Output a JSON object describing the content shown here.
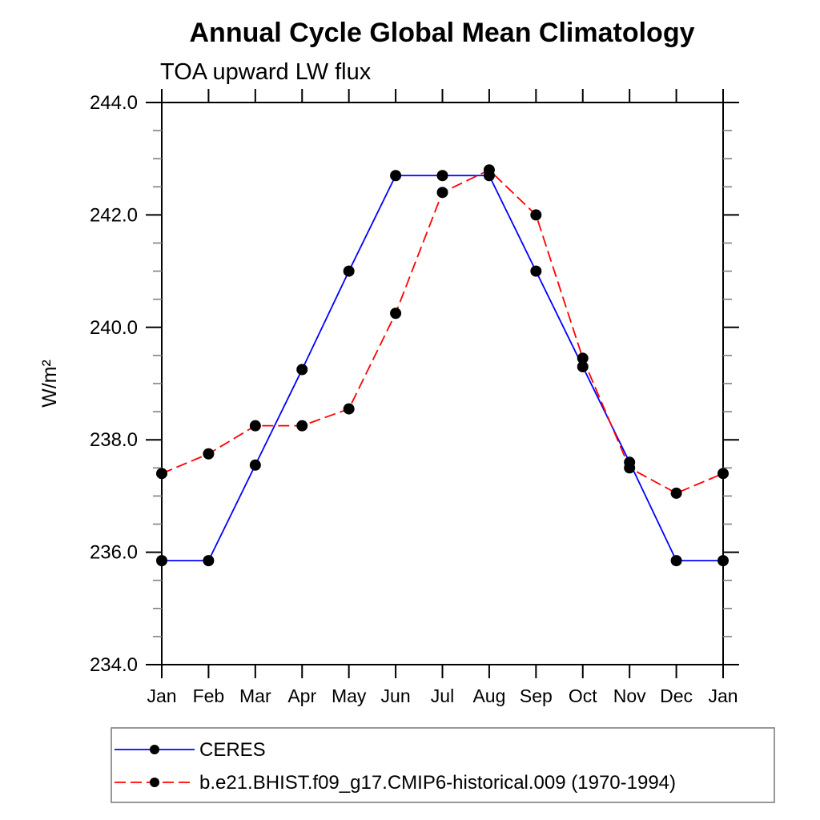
{
  "page": {
    "background": "#ffffff"
  },
  "chart_data": {
    "type": "line",
    "title": "Annual Cycle Global Mean Climatology",
    "subtitle": "TOA upward LW flux",
    "ylabel": "W/m²",
    "xlabel": "",
    "categories": [
      "Jan",
      "Feb",
      "Mar",
      "Apr",
      "May",
      "Jun",
      "Jul",
      "Aug",
      "Sep",
      "Oct",
      "Nov",
      "Dec",
      "Jan"
    ],
    "ylim": [
      234.0,
      244.0
    ],
    "ytick_major_interval": 2.0,
    "ytick_minor_interval": 0.5,
    "ytick_labels": [
      "234.0",
      "236.0",
      "238.0",
      "240.0",
      "242.0",
      "244.0"
    ],
    "grid": false,
    "legend_position": "bottom-left",
    "marker": "filled-circle",
    "marker_color": "#000000",
    "series": [
      {
        "name": "CERES",
        "color": "#0000ff",
        "line_style": "solid",
        "values": [
          235.85,
          235.85,
          237.55,
          239.25,
          241.0,
          242.7,
          242.7,
          242.7,
          241.0,
          239.3,
          237.6,
          235.85,
          235.85
        ]
      },
      {
        "name": "b.e21.BHIST.f09_g17.CMIP6-historical.009 (1970-1994)",
        "color": "#ff0000",
        "line_style": "dashed",
        "values": [
          237.4,
          237.75,
          238.25,
          238.25,
          238.55,
          240.25,
          242.4,
          242.8,
          242.0,
          239.45,
          237.5,
          237.05,
          237.4
        ]
      }
    ]
  }
}
